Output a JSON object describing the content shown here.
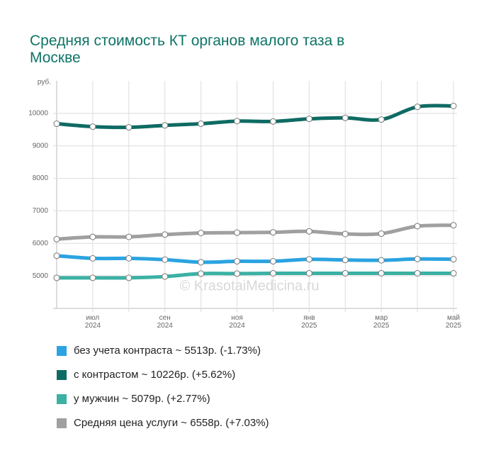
{
  "chart_data": {
    "type": "line",
    "title": "Средняя стоимость КТ органов малого таза в Москве",
    "y_label": "руб.",
    "annotation": "© KrasotaiMedicina.ru",
    "categories": [
      null,
      "июл 2024",
      null,
      "сен 2024",
      null,
      "ноя 2024",
      null,
      "янв 2025",
      null,
      "мар 2025",
      null,
      "май 2025"
    ],
    "ylim": [
      4000,
      11000
    ],
    "yticks": [
      5000,
      6000,
      7000,
      8000,
      9000,
      10000
    ],
    "grid": true,
    "series": [
      {
        "name": "без учета контраста ~ 5513р. (-1.73%)",
        "color": "#2ba3e1",
        "values": [
          5620,
          5540,
          5540,
          5500,
          5420,
          5450,
          5450,
          5510,
          5490,
          5480,
          5520,
          5513
        ]
      },
      {
        "name": "с контрастом ~ 10226р. (+5.62%)",
        "color": "#0e6b63",
        "values": [
          9680,
          9590,
          9570,
          9630,
          9680,
          9760,
          9750,
          9830,
          9860,
          9810,
          10200,
          10226
        ]
      },
      {
        "name": "у мужчин ~ 5079р. (+2.77%)",
        "color": "#3bb1a4",
        "values": [
          4940,
          4940,
          4940,
          4980,
          5070,
          5070,
          5080,
          5080,
          5080,
          5080,
          5080,
          5079
        ]
      },
      {
        "name": "Средняя цена услуги ~ 6558р. (+7.03%)",
        "color": "#a0a0a0",
        "values": [
          6130,
          6200,
          6200,
          6270,
          6320,
          6330,
          6340,
          6370,
          6290,
          6300,
          6530,
          6558
        ]
      }
    ]
  }
}
